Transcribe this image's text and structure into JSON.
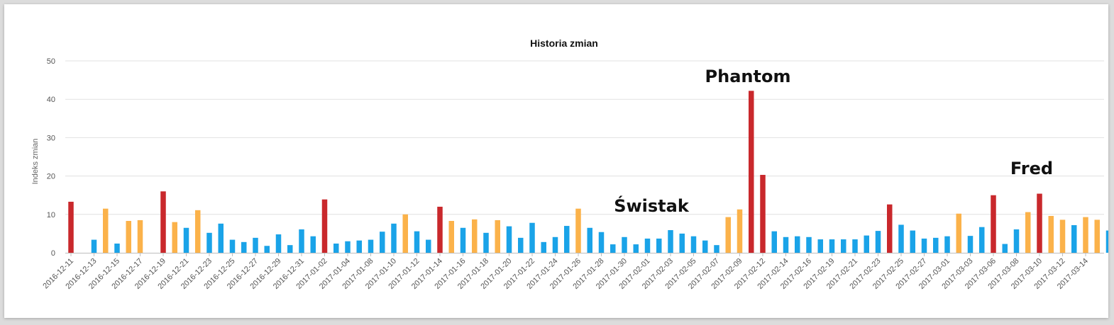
{
  "chart_data": {
    "type": "bar",
    "title": "Historia zmian",
    "ylabel": "Indeks zmian",
    "ylim": [
      0,
      50
    ],
    "yticks": [
      0,
      10,
      20,
      30,
      40,
      50
    ],
    "grid": true,
    "colors": {
      "low": "#1aa3e8",
      "medium": "#fbb24a",
      "high": "#c9282c"
    },
    "values": [
      13.3,
      0,
      3.4,
      11.5,
      2.4,
      8.3,
      8.5,
      0,
      16.0,
      8.0,
      6.5,
      11.1,
      5.2,
      7.6,
      3.4,
      2.8,
      3.9,
      1.8,
      4.8,
      2.0,
      6.1,
      4.3,
      13.9,
      2.4,
      3.0,
      3.2,
      3.4,
      5.5,
      7.6,
      10.0,
      5.6,
      3.4,
      12.0,
      8.3,
      6.5,
      8.7,
      5.2,
      8.5,
      6.9,
      3.9,
      7.8,
      2.8,
      4.1,
      7.0,
      11.5,
      6.5,
      5.4,
      2.2,
      4.1,
      2.2,
      3.7,
      3.7,
      5.9,
      5.0,
      4.3,
      3.2,
      2.0,
      9.3,
      11.3,
      42.2,
      20.3,
      5.6,
      4.1,
      4.3,
      4.1,
      3.5,
      3.5,
      3.5,
      3.5,
      4.5,
      5.7,
      12.6,
      7.3,
      5.8,
      3.7,
      3.9,
      4.3,
      10.2,
      4.4,
      6.7,
      15.0,
      2.3,
      6.1,
      10.6,
      15.4,
      9.6,
      8.6,
      7.2,
      9.3,
      8.6,
      5.8
    ],
    "levels": [
      "high",
      "low",
      "low",
      "medium",
      "low",
      "medium",
      "medium",
      "low",
      "high",
      "medium",
      "low",
      "medium",
      "low",
      "low",
      "low",
      "low",
      "low",
      "low",
      "low",
      "low",
      "low",
      "low",
      "high",
      "low",
      "low",
      "low",
      "low",
      "low",
      "low",
      "medium",
      "low",
      "low",
      "high",
      "medium",
      "low",
      "medium",
      "low",
      "medium",
      "low",
      "low",
      "low",
      "low",
      "low",
      "low",
      "medium",
      "low",
      "low",
      "low",
      "low",
      "low",
      "low",
      "low",
      "low",
      "low",
      "low",
      "low",
      "low",
      "medium",
      "medium",
      "high",
      "high",
      "low",
      "low",
      "low",
      "low",
      "low",
      "low",
      "low",
      "low",
      "low",
      "low",
      "high",
      "low",
      "low",
      "low",
      "low",
      "low",
      "medium",
      "low",
      "low",
      "high",
      "low",
      "low",
      "medium",
      "high",
      "medium",
      "medium",
      "low",
      "medium",
      "medium",
      "low"
    ],
    "tick_labels": [
      "2016-12-11",
      "2016-12-13",
      "2016-12-15",
      "2016-12-17",
      "2016-12-19",
      "2016-12-21",
      "2016-12-23",
      "2016-12-25",
      "2016-12-27",
      "2016-12-29",
      "2016-12-31",
      "2017-01-02",
      "2017-01-04",
      "2017-01-08",
      "2017-01-10",
      "2017-01-12",
      "2017-01-14",
      "2017-01-16",
      "2017-01-18",
      "2017-01-20",
      "2017-01-22",
      "2017-01-24",
      "2017-01-26",
      "2017-01-28",
      "2017-01-30",
      "2017-02-01",
      "2017-02-03",
      "2017-02-05",
      "2017-02-07",
      "2017-02-09",
      "2017-02-12",
      "2017-02-14",
      "2017-02-16",
      "2017-02-19",
      "2017-02-21",
      "2017-02-23",
      "2017-02-25",
      "2017-02-27",
      "2017-03-01",
      "2017-03-03",
      "2017-03-06",
      "2017-03-08",
      "2017-03-10",
      "2017-03-12",
      "2017-03-14"
    ],
    "annotations": [
      {
        "text": "Phantom",
        "category_index": 59
      },
      {
        "text": "Świstak",
        "category_index": 49
      },
      {
        "text": "Fred",
        "category_index": 84
      }
    ]
  }
}
